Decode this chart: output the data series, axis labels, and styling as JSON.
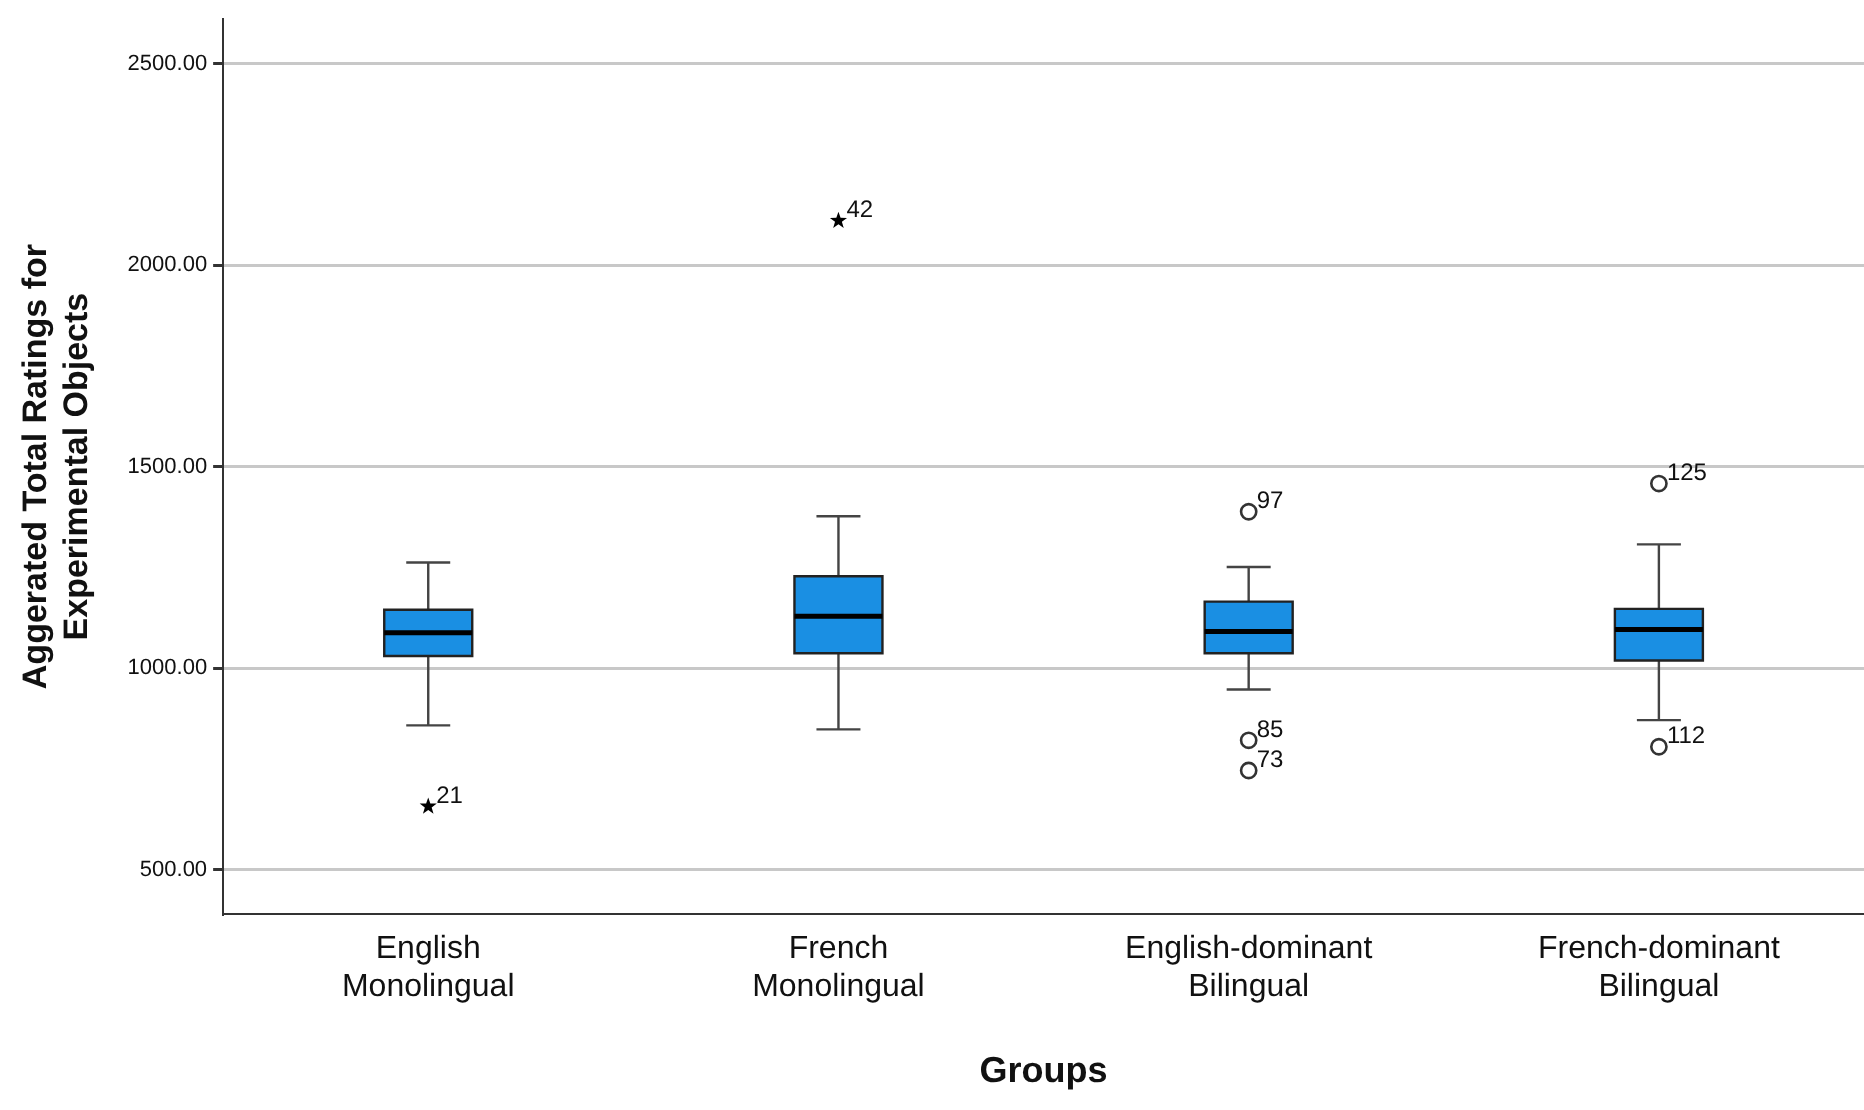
{
  "chart_data": {
    "type": "box",
    "xlabel": "Groups",
    "ylabel": "Aggerated Total Ratings for Experimental Objects",
    "categories": [
      "English Monolingual",
      "French Monolingual",
      "English-dominant Bilingual",
      "French-dominant Bilingual"
    ],
    "series": [
      {
        "color": "#1a8fe3",
        "boxes": [
          {
            "low": 858,
            "q1": 1030,
            "median": 1088,
            "q3": 1145,
            "high": 1262
          },
          {
            "low": 848,
            "q1": 1037,
            "median": 1129,
            "q3": 1228,
            "high": 1377
          },
          {
            "low": 947,
            "q1": 1037,
            "median": 1091,
            "q3": 1165,
            "high": 1251
          },
          {
            "low": 871,
            "q1": 1019,
            "median": 1096,
            "q3": 1147,
            "high": 1307
          }
        ]
      },
      {
        "type": "scatter",
        "marker": "circle",
        "color": "#333333",
        "x": [
          "English-dominant Bilingual",
          "English-dominant Bilingual",
          "English-dominant Bilingual",
          "French-dominant Bilingual",
          "French-dominant Bilingual"
        ],
        "values": [
          1388,
          821,
          746,
          1458,
          805
        ]
      },
      {
        "type": "scatter",
        "marker": "star",
        "color": "#000000",
        "x": [
          "English Monolingual",
          "French Monolingual"
        ],
        "values": [
          657,
          2110
        ]
      }
    ],
    "ylim": [
      390,
      2610
    ],
    "yticks": [
      {
        "value": 500,
        "label": "500.00"
      },
      {
        "value": 1000,
        "label": "1000.00"
      },
      {
        "value": 1500,
        "label": "1500.00"
      },
      {
        "value": 2000,
        "label": "2000.00"
      },
      {
        "value": 2500,
        "label": "2500.00"
      }
    ],
    "grid": "y",
    "legend": false,
    "annotations": [
      {
        "text": "21",
        "x": "English Monolingual",
        "y": 657
      },
      {
        "text": "42",
        "x": "French Monolingual",
        "y": 2110
      },
      {
        "text": "97",
        "x": "English-dominant Bilingual",
        "y": 1388
      },
      {
        "text": "85",
        "x": "English-dominant Bilingual",
        "y": 821
      },
      {
        "text": "73",
        "x": "English-dominant Bilingual",
        "y": 746
      },
      {
        "text": "125",
        "x": "French-dominant Bilingual",
        "y": 1458
      },
      {
        "text": "112",
        "x": "French-dominant Bilingual",
        "y": 805
      }
    ]
  }
}
